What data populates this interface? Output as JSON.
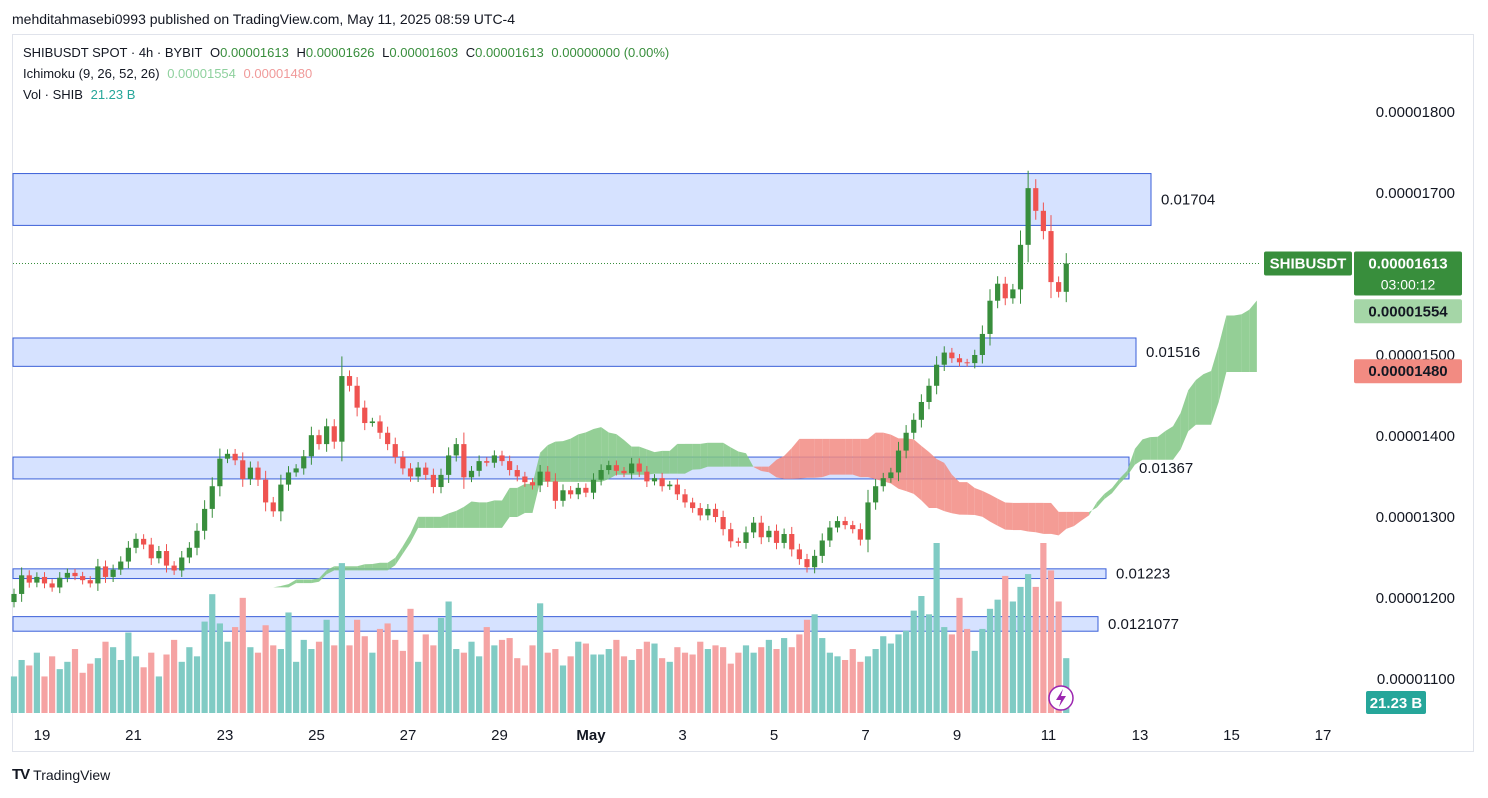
{
  "publisher_line": "mehditahmasebi0993 published on TradingView.com, May 11, 2025 08:59 UTC-4",
  "legend": {
    "symbol_line": "SHIBUSDT SPOT · 4h · BYBIT",
    "o_label": "O",
    "o_value": "0.00001613",
    "h_label": "H",
    "h_value": "0.00001626",
    "l_label": "L",
    "l_value": "0.00001603",
    "c_label": "C",
    "c_value": "0.00001613",
    "change": "0.00000000 (0.00%)",
    "ichimoku_label": "Ichimoku (9, 26, 52, 26)",
    "ichimoku_a": "0.00001554",
    "ichimoku_b": "0.00001480",
    "vol_label": "Vol · SHIB",
    "vol_value": "21.23 B"
  },
  "footer": {
    "brand": "TradingView"
  },
  "colors": {
    "bull": "#26a69a",
    "bull_candle": "#388e3c",
    "bear": "#ef5350",
    "bull_cloud": "#81c784",
    "bear_cloud": "#f28b82",
    "zone_fill": "#d6e2ff",
    "zone_border": "#3a5fd8",
    "vol_bull": "#80cbc4",
    "vol_bear": "#f5a3a3"
  },
  "chart_data": {
    "type": "candlestick",
    "ylim": [
      1.06e-05,
      1.85e-05
    ],
    "y_ticks": [
      "0.00001800",
      "0.00001700",
      "0.00001500",
      "0.00001400",
      "0.00001300",
      "0.00001200",
      "0.00001100"
    ],
    "y_tick_values": [
      1.8e-05,
      1.7e-05,
      1.5e-05,
      1.4e-05,
      1.3e-05,
      1.2e-05,
      1.1e-05
    ],
    "x_ticks": [
      "19",
      "21",
      "23",
      "25",
      "27",
      "29",
      "May",
      "3",
      "5",
      "7",
      "9",
      "11",
      "13",
      "15",
      "17"
    ],
    "x_tick_days": [
      0,
      2,
      4,
      6,
      8,
      10,
      12,
      14,
      16,
      18,
      20,
      22,
      24,
      26,
      28
    ],
    "zones": [
      {
        "label": "0.01704",
        "top": 1.724e-05,
        "bottom": 1.66e-05
      },
      {
        "label": "0.01516",
        "top": 1.521e-05,
        "bottom": 1.486e-05
      },
      {
        "label": "0.01367",
        "top": 1.374e-05,
        "bottom": 1.347e-05
      },
      {
        "label": "0.01223",
        "top": 1.236e-05,
        "bottom": 1.224e-05
      },
      {
        "label": "0.0121077",
        "top": 1.177e-05,
        "bottom": 1.159e-05
      }
    ],
    "current_price": {
      "symbol": "SHIBUSDT",
      "price": "0.00001613",
      "value": 1.613e-05,
      "countdown": "03:00:12"
    },
    "ichimoku_tags": [
      {
        "text": "0.00001554",
        "value": 1.554e-05,
        "kind": "a"
      },
      {
        "text": "0.00001480",
        "value": 1.48e-05,
        "kind": "b"
      }
    ],
    "volume_tag": "21.23 B",
    "closes": [
      1.205e-05,
      1.228e-05,
      1.219e-05,
      1.226e-05,
      1.218e-05,
      1.213e-05,
      1.225e-05,
      1.231e-05,
      1.227e-05,
      1.222e-05,
      1.218e-05,
      1.239e-05,
      1.226e-05,
      1.235e-05,
      1.245e-05,
      1.262e-05,
      1.273e-05,
      1.266e-05,
      1.249e-05,
      1.258e-05,
      1.24e-05,
      1.234e-05,
      1.25e-05,
      1.262e-05,
      1.283e-05,
      1.31e-05,
      1.338e-05,
      1.372e-05,
      1.378e-05,
      1.37e-05,
      1.347e-05,
      1.361e-05,
      1.346e-05,
      1.318e-05,
      1.307e-05,
      1.34e-05,
      1.355e-05,
      1.36e-05,
      1.375e-05,
      1.401e-05,
      1.39e-05,
      1.412e-05,
      1.393e-05,
      1.474e-05,
      1.462e-05,
      1.435e-05,
      1.416e-05,
      1.418e-05,
      1.404e-05,
      1.39e-05,
      1.374e-05,
      1.36e-05,
      1.35e-05,
      1.361e-05,
      1.352e-05,
      1.337e-05,
      1.352e-05,
      1.376e-05,
      1.39e-05,
      1.349e-05,
      1.357e-05,
      1.369e-05,
      1.367e-05,
      1.376e-05,
      1.369e-05,
      1.358e-05,
      1.35e-05,
      1.343e-05,
      1.339e-05,
      1.356e-05,
      1.344e-05,
      1.32e-05,
      1.333e-05,
      1.328e-05,
      1.336e-05,
      1.33e-05,
      1.346e-05,
      1.358e-05,
      1.364e-05,
      1.357e-05,
      1.354e-05,
      1.366e-05,
      1.356e-05,
      1.344e-05,
      1.348e-05,
      1.338e-05,
      1.34e-05,
      1.328e-05,
      1.318e-05,
      1.311e-05,
      1.302e-05,
      1.31e-05,
      1.3e-05,
      1.285e-05,
      1.27e-05,
      1.268e-05,
      1.281e-05,
      1.293e-05,
      1.275e-05,
      1.283e-05,
      1.268e-05,
      1.279e-05,
      1.26e-05,
      1.248e-05,
      1.238e-05,
      1.252e-05,
      1.271e-05,
      1.287e-05,
      1.295e-05,
      1.29e-05,
      1.285e-05,
      1.272e-05,
      1.318e-05,
      1.338e-05,
      1.348e-05,
      1.355e-05,
      1.382e-05,
      1.404e-05,
      1.42e-05,
      1.442e-05,
      1.462e-05,
      1.488e-05,
      1.503e-05,
      1.496e-05,
      1.491e-05,
      1.49e-05,
      1.5e-05,
      1.526e-05,
      1.567e-05,
      1.588e-05,
      1.57e-05,
      1.581e-05,
      1.636e-05,
      1.706e-05,
      1.678e-05,
      1.653e-05,
      1.59e-05,
      1.578e-05,
      1.613e-05
    ],
    "cloud_projection": [
      1.38e-05,
      1.395e-05,
      1.41e-05,
      1.42e-05,
      1.44e-05,
      1.46e-05,
      1.485e-05,
      1.51e-05,
      1.53e-05,
      1.554e-05
    ],
    "volumes": [
      2.0,
      2.9,
      2.6,
      3.3,
      2.0,
      3.1,
      2.4,
      2.8,
      3.5,
      2.2,
      2.7,
      3.0,
      3.9,
      3.6,
      2.9,
      4.4,
      3.1,
      2.5,
      3.3,
      2.0,
      3.2,
      4.0,
      2.8,
      3.6,
      3.1,
      5.0,
      6.5,
      4.9,
      3.9,
      4.7,
      6.3,
      3.6,
      3.3,
      4.8,
      3.7,
      3.5,
      5.5,
      2.8,
      4.0,
      3.5,
      3.9,
      5.1,
      3.7,
      8.2,
      3.7,
      5.1,
      4.2,
      3.3,
      4.6,
      4.9,
      4.0,
      3.4,
      5.7,
      2.8,
      4.3,
      3.7,
      5.2,
      6.1,
      3.5,
      3.3,
      3.9,
      3.1,
      4.7,
      3.7,
      4.0,
      4.1,
      3.0,
      2.6,
      3.7,
      6.0,
      3.3,
      3.5,
      2.6,
      3.1,
      3.9,
      3.8,
      3.2,
      3.2,
      3.5,
      4.0,
      3.1,
      2.9,
      3.5,
      3.9,
      3.8,
      3.0,
      2.8,
      3.6,
      3.3,
      3.2,
      3.9,
      3.5,
      3.7,
      3.6,
      2.7,
      3.3,
      3.7,
      3.3,
      3.6,
      4.0,
      3.5,
      4.1,
      3.6,
      4.3,
      5.1,
      5.4,
      4.1,
      3.3,
      3.1,
      2.9,
      3.5,
      2.8,
      3.1,
      3.5,
      4.2,
      3.8,
      4.3,
      4.5,
      5.6,
      6.4,
      5.4,
      9.3,
      4.7,
      4.3,
      6.3,
      4.6,
      3.4,
      4.6,
      5.7,
      6.2,
      7.5,
      6.1,
      6.9,
      7.6,
      6.9,
      9.3,
      7.8,
      6.1,
      3.0
    ]
  }
}
